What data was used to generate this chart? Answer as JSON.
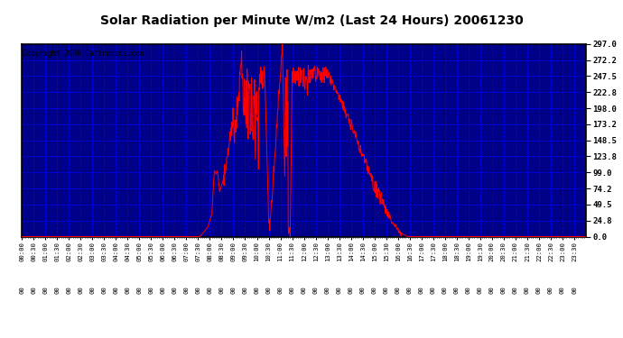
{
  "title": "Solar Radiation per Minute W/m2 (Last 24 Hours) 20061230",
  "copyright_text": "Copyright 2006 Cartronics.com",
  "background_color": "#000080",
  "plot_bg_color": "#000080",
  "line_color": "#FF0000",
  "grid_color_major": "#0000FF",
  "grid_color_minor": "#0000AA",
  "text_color": "#FFFFFF",
  "border_color": "#000000",
  "title_color": "#000000",
  "title_bg": "#FFFFFF",
  "ylim": [
    0.0,
    297.0
  ],
  "yticks": [
    0.0,
    24.8,
    49.5,
    74.2,
    99.0,
    123.8,
    148.5,
    173.2,
    198.0,
    222.8,
    247.5,
    272.2,
    297.0
  ],
  "num_minutes": 1440,
  "tick_interval_major": 30,
  "tick_interval_minor": 5
}
